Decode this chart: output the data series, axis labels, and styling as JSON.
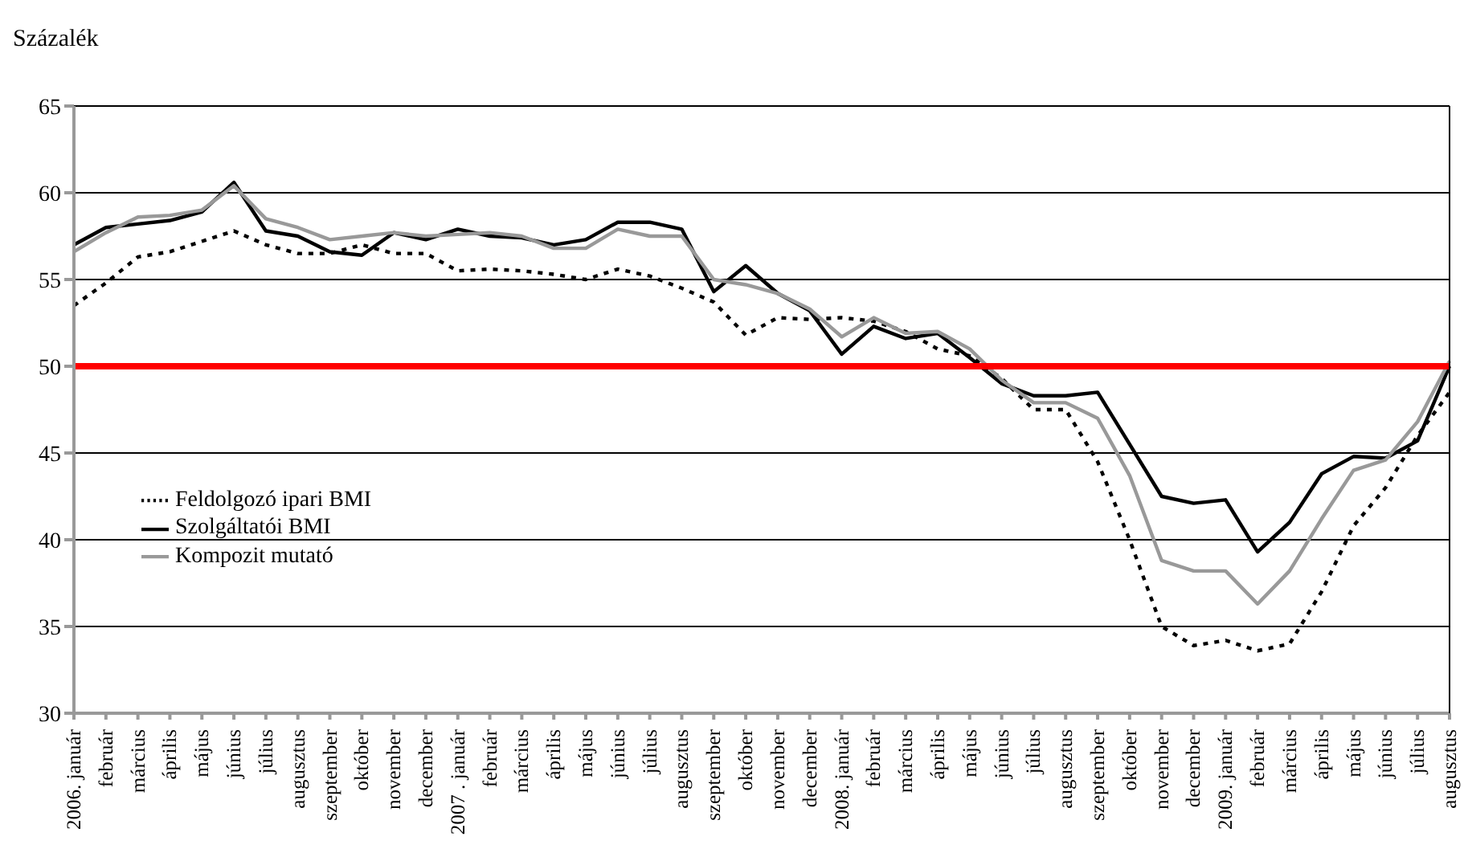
{
  "chart_data": {
    "type": "line",
    "ylabel": "Százalék",
    "categories": [
      "2006. január",
      "február",
      "március",
      "április",
      "május",
      "június",
      "július",
      "augusztus",
      "szeptember",
      "október",
      "november",
      "december",
      "2007 . január",
      "február",
      "március",
      "április",
      "május",
      "június",
      "július",
      "augusztus",
      "szeptember",
      "október",
      "november",
      "december",
      "2008. január",
      "február",
      "március",
      "április",
      "május",
      "június",
      "július",
      "augusztus",
      "szeptember",
      "október",
      "november",
      "december",
      "2009. január",
      "február",
      "március",
      "április",
      "május",
      "június",
      "július",
      "augusztus"
    ],
    "series": [
      {
        "name": "Feldolgozó ipari BMI",
        "color": "#000000",
        "line_style": "dotted",
        "values": [
          53.5,
          54.8,
          56.3,
          56.6,
          57.2,
          57.8,
          57.0,
          56.5,
          56.5,
          57.0,
          56.5,
          56.5,
          55.5,
          55.6,
          55.5,
          55.3,
          55.0,
          55.6,
          55.2,
          54.5,
          53.7,
          51.8,
          52.8,
          52.7,
          52.8,
          52.6,
          52.0,
          51.0,
          50.6,
          49.3,
          47.5,
          47.5,
          44.5,
          40.0,
          35.0,
          33.9,
          34.2,
          33.6,
          34.0,
          37.0,
          40.8,
          43.0,
          46.0,
          48.5
        ]
      },
      {
        "name": "Szolgáltatói BMI",
        "color": "#000000",
        "line_style": "solid",
        "values": [
          57.0,
          58.0,
          58.2,
          58.4,
          58.9,
          60.6,
          57.8,
          57.5,
          56.6,
          56.4,
          57.7,
          57.3,
          57.9,
          57.5,
          57.4,
          57.0,
          57.3,
          58.3,
          58.3,
          57.9,
          54.3,
          55.8,
          54.2,
          53.2,
          50.7,
          52.3,
          51.6,
          51.9,
          50.5,
          49.0,
          48.3,
          48.3,
          48.5,
          45.5,
          42.5,
          42.1,
          42.3,
          39.3,
          41.0,
          43.8,
          44.8,
          44.7,
          45.7,
          50.0
        ]
      },
      {
        "name": "Kompozit mutató",
        "color": "#999999",
        "line_style": "solid",
        "values": [
          56.6,
          57.7,
          58.6,
          58.7,
          59.0,
          60.4,
          58.5,
          58.0,
          57.3,
          57.5,
          57.7,
          57.5,
          57.6,
          57.7,
          57.5,
          56.8,
          56.8,
          57.9,
          57.5,
          57.5,
          55.0,
          54.7,
          54.2,
          53.3,
          51.7,
          52.8,
          51.9,
          52.0,
          51.0,
          49.2,
          47.9,
          47.9,
          47.0,
          43.7,
          38.8,
          38.2,
          38.2,
          36.3,
          38.2,
          41.2,
          44.0,
          44.6,
          46.8,
          50.3
        ]
      }
    ],
    "ylim": [
      30,
      65
    ],
    "yticks": [
      30,
      35,
      40,
      45,
      50,
      55,
      60,
      65
    ],
    "grid": "y",
    "legend": "left",
    "marker": "none",
    "ref_lines": [
      {
        "axis": "y",
        "value": 50,
        "color": "#ff0000",
        "line_style": "solid"
      }
    ]
  }
}
